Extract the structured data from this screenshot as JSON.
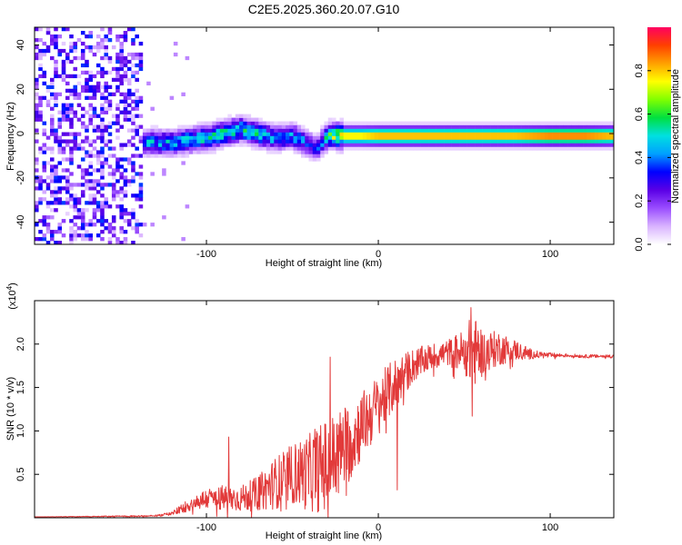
{
  "title": "C2E5.2025.360.20.07.G10",
  "chart_data": [
    {
      "type": "heatmap",
      "name": "spectrogram",
      "xlabel": "Height of straight line (km)",
      "ylabel": "Frequency (Hz)",
      "xlim": [
        -200,
        137
      ],
      "ylim": [
        -50,
        48
      ],
      "xticks": [
        -100,
        0,
        100
      ],
      "xtick_labels": [
        "-100",
        "0",
        "100"
      ],
      "yticks": [
        -40,
        -20,
        0,
        20,
        40
      ],
      "ytick_labels": [
        "-40",
        "-20",
        "0",
        "20",
        "40"
      ],
      "colorbar": {
        "label": "Normalized spectral amplitude",
        "range": [
          0.0,
          1.0
        ],
        "ticks": [
          0.0,
          0.2,
          0.4,
          0.6,
          0.8
        ],
        "tick_labels": [
          "0.0",
          "0.2",
          "0.4",
          "0.6",
          "0.8"
        ],
        "colormap": [
          "#ffffff",
          "#d9b3ff",
          "#9a4dff",
          "#5a00e6",
          "#0000ff",
          "#00a0ff",
          "#00e0e0",
          "#00e040",
          "#80ff00",
          "#ffff00",
          "#ffa000",
          "#ff4000",
          "#ff0060"
        ]
      },
      "noise_region_x": [
        -200,
        -138
      ],
      "ridge": {
        "x": [
          -140,
          -130,
          -120,
          -110,
          -100,
          -90,
          -80,
          -70,
          -60,
          -50,
          -45,
          -40,
          -36,
          -32,
          -28,
          -24,
          -20,
          -10,
          0,
          20,
          40,
          60,
          80,
          100,
          120,
          137
        ],
        "freq": [
          -4,
          -4,
          -4,
          -3,
          -2,
          0,
          2,
          0,
          -2,
          -1,
          -3,
          -5,
          -7,
          -3,
          -1,
          -1,
          -1,
          -1,
          -1,
          -1,
          -1,
          -1,
          -1,
          -1,
          -1,
          -1
        ],
        "amp": [
          0.45,
          0.5,
          0.5,
          0.55,
          0.55,
          0.6,
          0.6,
          0.55,
          0.5,
          0.5,
          0.45,
          0.4,
          0.35,
          0.45,
          0.7,
          0.75,
          0.8,
          0.8,
          0.85,
          0.85,
          0.85,
          0.85,
          0.85,
          0.9,
          0.9,
          0.85
        ]
      }
    },
    {
      "type": "line",
      "name": "snr",
      "xlabel": "Height of straight line (km)",
      "ylabel": "SNR (10 * v/v)",
      "scale_label": "(x10",
      "scale_exponent": "4",
      "scale_suffix": ")",
      "xlim": [
        -200,
        137
      ],
      "ylim": [
        0,
        2.5
      ],
      "xticks": [
        -100,
        0,
        100
      ],
      "xtick_labels": [
        "-100",
        "0",
        "100"
      ],
      "yticks": [
        0.5,
        1.0,
        1.5,
        2.0
      ],
      "ytick_labels": [
        "0.5",
        "1.0",
        "1.5",
        "2.0"
      ],
      "line_color": "#e23a3a",
      "envelope": {
        "x": [
          -200,
          -130,
          -120,
          -110,
          -100,
          -90,
          -80,
          -70,
          -60,
          -50,
          -40,
          -30,
          -20,
          -10,
          0,
          10,
          20,
          30,
          40,
          50,
          55,
          60,
          70,
          80,
          90,
          100,
          110,
          120,
          137
        ],
        "y": [
          0.01,
          0.02,
          0.05,
          0.15,
          0.22,
          0.23,
          0.22,
          0.28,
          0.4,
          0.5,
          0.52,
          0.6,
          0.8,
          1.05,
          1.3,
          1.55,
          1.75,
          1.85,
          1.9,
          1.92,
          1.92,
          1.9,
          1.95,
          1.93,
          1.88,
          1.87,
          1.87,
          1.86,
          1.86
        ],
        "amp": [
          0.0,
          0.01,
          0.02,
          0.08,
          0.12,
          0.15,
          0.15,
          0.2,
          0.3,
          0.35,
          0.45,
          0.55,
          0.5,
          0.4,
          0.35,
          0.3,
          0.2,
          0.15,
          0.15,
          0.25,
          0.45,
          0.25,
          0.2,
          0.12,
          0.05,
          0.03,
          0.02,
          0.02,
          0.02
        ]
      },
      "spikes": [
        {
          "x": -87,
          "y": 0.93
        },
        {
          "x": -48,
          "y": 0.78
        },
        {
          "x": -37,
          "y": 1.02
        },
        {
          "x": -28,
          "y": 1.85
        },
        {
          "x": 11,
          "y": 0.32
        },
        {
          "x": 54,
          "y": 2.42
        },
        {
          "x": 54.5,
          "y": 1.17
        }
      ]
    }
  ]
}
